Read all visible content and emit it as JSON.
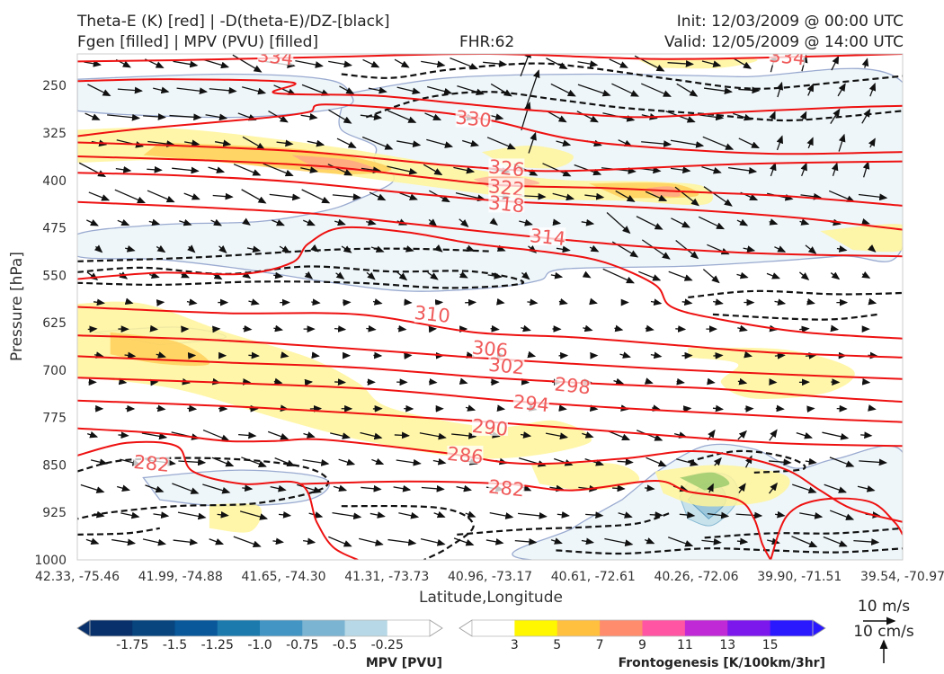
{
  "header": {
    "line1_left": "Theta-E (K) [red] | -D(theta-E)/DZ-[black]",
    "line2_left": "Fgen [filled] | MPV (PVU) [filled]",
    "fhr": "FHR:62",
    "init": "Init: 12/03/2009 @ 00:00 UTC",
    "valid": "Valid: 12/05/2009 @ 14:00 UTC"
  },
  "chart_data": {
    "type": "cross-section",
    "xlabel": "Latitude,Longitude",
    "ylabel": "Pressure [hPa]",
    "x_ticks": [
      "42.33, -75.46",
      "41.99, -74.88",
      "41.65, -74.30",
      "41.31, -73.73",
      "40.96, -73.17",
      "40.61, -72.61",
      "40.26, -72.06",
      "39.90, -71.51",
      "39.54, -70.97"
    ],
    "y_ticks": [
      250,
      325,
      400,
      475,
      550,
      625,
      700,
      775,
      850,
      925,
      1000
    ],
    "ylim": [
      1000,
      200
    ],
    "y_axis": "pressure, inverted (surface at bottom)",
    "theta_e_contours_K": [
      282,
      286,
      290,
      294,
      298,
      302,
      306,
      310,
      314,
      318,
      322,
      326,
      330,
      334
    ],
    "theta_e_labels": [
      {
        "text": "334",
        "x": 0.24,
        "p": 205
      },
      {
        "text": "334",
        "x": 0.86,
        "p": 205
      },
      {
        "text": "330",
        "x": 0.48,
        "p": 303
      },
      {
        "text": "326",
        "x": 0.52,
        "p": 381
      },
      {
        "text": "322",
        "x": 0.52,
        "p": 412
      },
      {
        "text": "318",
        "x": 0.52,
        "p": 438
      },
      {
        "text": "314",
        "x": 0.57,
        "p": 490
      },
      {
        "text": "310",
        "x": 0.43,
        "p": 612
      },
      {
        "text": "306",
        "x": 0.5,
        "p": 667
      },
      {
        "text": "302",
        "x": 0.52,
        "p": 694
      },
      {
        "text": "298",
        "x": 0.6,
        "p": 725
      },
      {
        "text": "294",
        "x": 0.55,
        "p": 753
      },
      {
        "text": "290",
        "x": 0.5,
        "p": 791
      },
      {
        "text": "286",
        "x": 0.47,
        "p": 835
      },
      {
        "text": "282",
        "x": 0.52,
        "p": 887
      },
      {
        "text": "282",
        "x": 0.09,
        "p": 848
      }
    ],
    "colorbar_mpv": {
      "label": "MPV [PVU]",
      "ticks": [
        "-1.75",
        "-1.5",
        "-1.25",
        "-1.0",
        "-0.75",
        "-0.5",
        "-0.25"
      ],
      "colors": [
        "#08306b",
        "#08457f",
        "#08589a",
        "#1c7aad",
        "#4396c4",
        "#7bb4d2",
        "#b7d8e6",
        "#ffffff"
      ]
    },
    "colorbar_fgen": {
      "label": "Frontogenesis [K/100km/3hr]",
      "ticks": [
        "3",
        "5",
        "7",
        "9",
        "11",
        "13",
        "15"
      ],
      "colors": [
        "#ffffff",
        "#fff700",
        "#ffc040",
        "#ff8c6c",
        "#ff55a3",
        "#c02ad6",
        "#7c18ec",
        "#2a18ff"
      ]
    },
    "wind_reference": {
      "horizontal": "10 m/s",
      "vertical": "10 cm/s"
    },
    "grid": false
  },
  "colors": {
    "theta_e": "#ee1111",
    "theta_e_label": "#f05a5a",
    "dtheta_dz": "#111111",
    "mpv_outline": "#9aaad0",
    "mpv_fill": "#eef6f9",
    "fgen_light": "#fff59a"
  }
}
